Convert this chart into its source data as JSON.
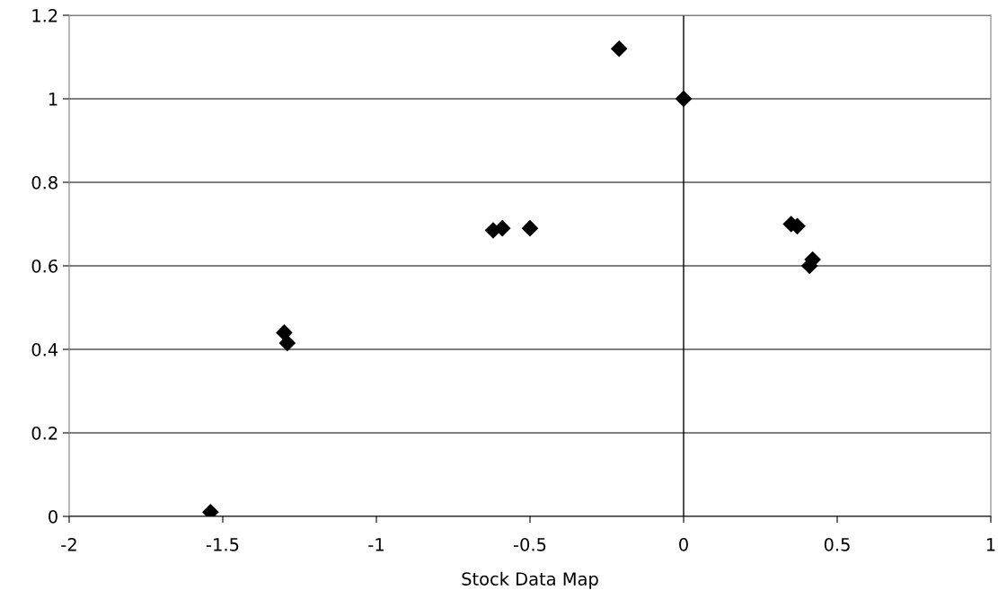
{
  "chart_data": {
    "type": "scatter",
    "xlabel": "Stock Data Map",
    "x": [
      -1.54,
      -1.3,
      -1.29,
      -0.62,
      -0.59,
      -0.5,
      -0.21,
      0,
      0.35,
      0.37,
      0.41,
      0.42
    ],
    "values": [
      0.01,
      0.44,
      0.415,
      0.685,
      0.69,
      0.69,
      1.12,
      1.0,
      0.7,
      0.695,
      0.6,
      0.615
    ],
    "color": "#000000",
    "marker": "diamond",
    "xlim": [
      -2,
      1
    ],
    "xticks": [
      -2,
      -1.5,
      -1,
      -0.5,
      0,
      0.5,
      1
    ],
    "ylim": [
      0,
      1.2
    ],
    "yticks": [
      0,
      0.2,
      0.4,
      0.6,
      0.8,
      1,
      1.2
    ],
    "ref_lines": [
      {
        "axis": "x",
        "value": 0,
        "label": null,
        "color": "#000000"
      }
    ],
    "grid": "y"
  }
}
